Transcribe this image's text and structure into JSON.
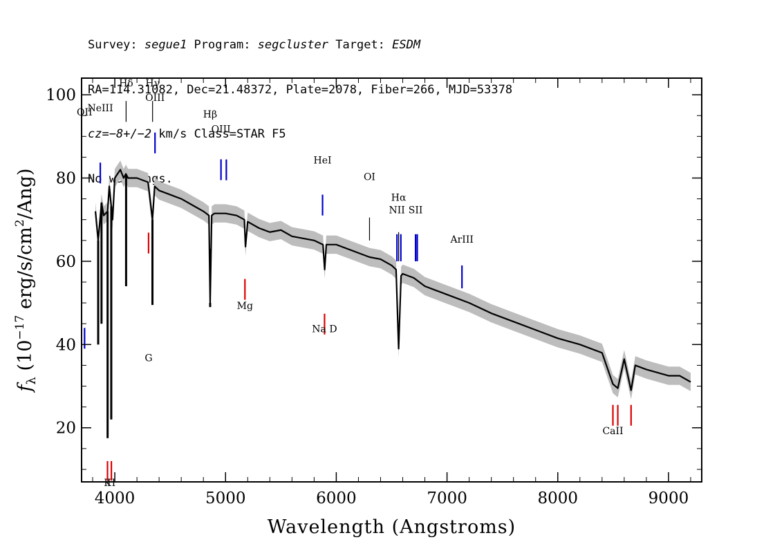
{
  "header": {
    "line1": {
      "a": "Survey: ",
      "survey": "segue1",
      "b": " Program: ",
      "program": "segcluster",
      "c": " Target: ",
      "target": "ESDM"
    },
    "line2": "RA=114.31082, Dec=21.48372, Plate=2078, Fiber=266, MJD=53378",
    "line3": {
      "cz": "cz",
      "eq": "=",
      "val": "−8+/−2",
      "rest": " km/s Class=STAR F5"
    },
    "line4": "No warnings."
  },
  "chart_data": {
    "type": "line",
    "xlabel": "Wavelength (Angstroms)",
    "ylabel": {
      "f": "f",
      "sub": "λ",
      "a": " (10",
      "sup": "−17",
      "b": " erg/s/cm",
      "sup2": "2",
      "c": "/Ang)"
    },
    "xlim": [
      3700,
      9300
    ],
    "ylim": [
      7,
      104
    ],
    "xticks": [
      4000,
      5000,
      6000,
      7000,
      8000,
      9000
    ],
    "yticks": [
      20,
      40,
      60,
      80,
      100
    ],
    "grid": false,
    "colors": {
      "flux": "#000000",
      "error_band": "#bdbdbd",
      "emission_lines": "#0000cc",
      "absorption_lines": "#dd0000",
      "sky_lines": "#000000"
    },
    "series": [
      {
        "name": "flux",
        "x": [
          3825,
          3850,
          3880,
          3900,
          3935,
          3950,
          3965,
          3980,
          4000,
          4050,
          4080,
          4100,
          4120,
          4200,
          4300,
          4340,
          4360,
          4400,
          4500,
          4600,
          4700,
          4800,
          4850,
          4861,
          4875,
          4900,
          5000,
          5100,
          5170,
          5180,
          5200,
          5300,
          5400,
          5500,
          5600,
          5700,
          5800,
          5880,
          5895,
          5910,
          6000,
          6100,
          6200,
          6300,
          6400,
          6500,
          6540,
          6563,
          6585,
          6600,
          6700,
          6800,
          6900,
          7000,
          7200,
          7400,
          7600,
          7800,
          8000,
          8200,
          8400,
          8498,
          8542,
          8600,
          8662,
          8700,
          8800,
          9000,
          9100,
          9200
        ],
        "y": [
          72,
          65,
          74,
          71,
          72,
          78,
          74,
          70,
          80,
          82,
          80,
          81,
          80,
          80,
          79,
          70,
          78,
          77,
          76,
          75,
          73.5,
          72,
          71,
          50,
          71,
          71.5,
          71.5,
          71,
          70,
          63.5,
          69.5,
          68,
          67,
          67.5,
          66,
          65.5,
          65,
          64,
          58,
          64,
          64,
          63,
          62,
          61,
          60.5,
          59,
          58,
          39,
          56.5,
          57,
          56,
          54,
          53,
          52,
          50,
          47.5,
          45.5,
          43.5,
          41.5,
          40,
          38,
          30.5,
          29.5,
          36.5,
          29,
          35,
          34,
          32.5,
          32.5,
          31
        ]
      },
      {
        "name": "spikes",
        "points": [
          [
            3850,
            40
          ],
          [
            3880,
            45
          ],
          [
            3935,
            17.5
          ],
          [
            3968,
            22
          ],
          [
            4102,
            54
          ],
          [
            4340,
            49.5
          ],
          [
            4861,
            49
          ]
        ]
      }
    ],
    "line_markers": [
      {
        "label": "OII",
        "x": 3727,
        "color": "blue",
        "label_y": 95
      },
      {
        "label": "NeIII",
        "x": 3869,
        "color": "blue",
        "label_y": 96
      },
      {
        "label": "Hδ",
        "x": 4102,
        "color": "black",
        "label_y": 102
      },
      {
        "label": "Hγ",
        "x": 4341,
        "color": "black",
        "label_y": 102
      },
      {
        "label": "OIII",
        "x": 4363,
        "color": "blue",
        "label_y": 98.5
      },
      {
        "label": "Hβ",
        "x": 4861,
        "color": "black",
        "label_y": 94.5
      },
      {
        "label": "OIII",
        "x": 4959,
        "color": "blue",
        "label_y": 91
      },
      {
        "label": "OIII",
        "x": 5007,
        "color": "blue",
        "label_y": null
      },
      {
        "label": "HeI",
        "x": 5876,
        "color": "blue",
        "label_y": 83.5
      },
      {
        "label": "OI",
        "x": 6300,
        "color": "black",
        "label_y": 79.5
      },
      {
        "label": "NII",
        "x": 6548,
        "color": "blue",
        "label_y": 71.5
      },
      {
        "label": "Hα",
        "x": 6563,
        "color": "black",
        "label_y": 74.5
      },
      {
        "label": "NII",
        "x": 6583,
        "color": "blue",
        "label_y": null
      },
      {
        "label": "SII",
        "x": 6716,
        "color": "blue",
        "label_y": 71.5
      },
      {
        "label": "SII",
        "x": 6731,
        "color": "blue",
        "label_y": null
      },
      {
        "label": "ArIII",
        "x": 7135,
        "color": "blue",
        "label_y": 64.5
      },
      {
        "label": "K",
        "x": 3934,
        "color": "red",
        "label_y": 6
      },
      {
        "label": "H",
        "x": 3969,
        "color": "red",
        "label_y": 6
      },
      {
        "label": "G",
        "x": 4305,
        "color": "red",
        "label_y": 36
      },
      {
        "label": "Mg",
        "x": 5175,
        "color": "red",
        "label_y": 48.5
      },
      {
        "label": "Na D",
        "x": 5894,
        "color": "red",
        "label_y": 43
      },
      {
        "label": "CaII",
        "x": 8498,
        "color": "red",
        "label_y": 18.5
      },
      {
        "label": "CaII",
        "x": 8542,
        "color": "red",
        "label_y": null
      },
      {
        "label": "CaII",
        "x": 8662,
        "color": "red",
        "label_y": null
      }
    ]
  }
}
